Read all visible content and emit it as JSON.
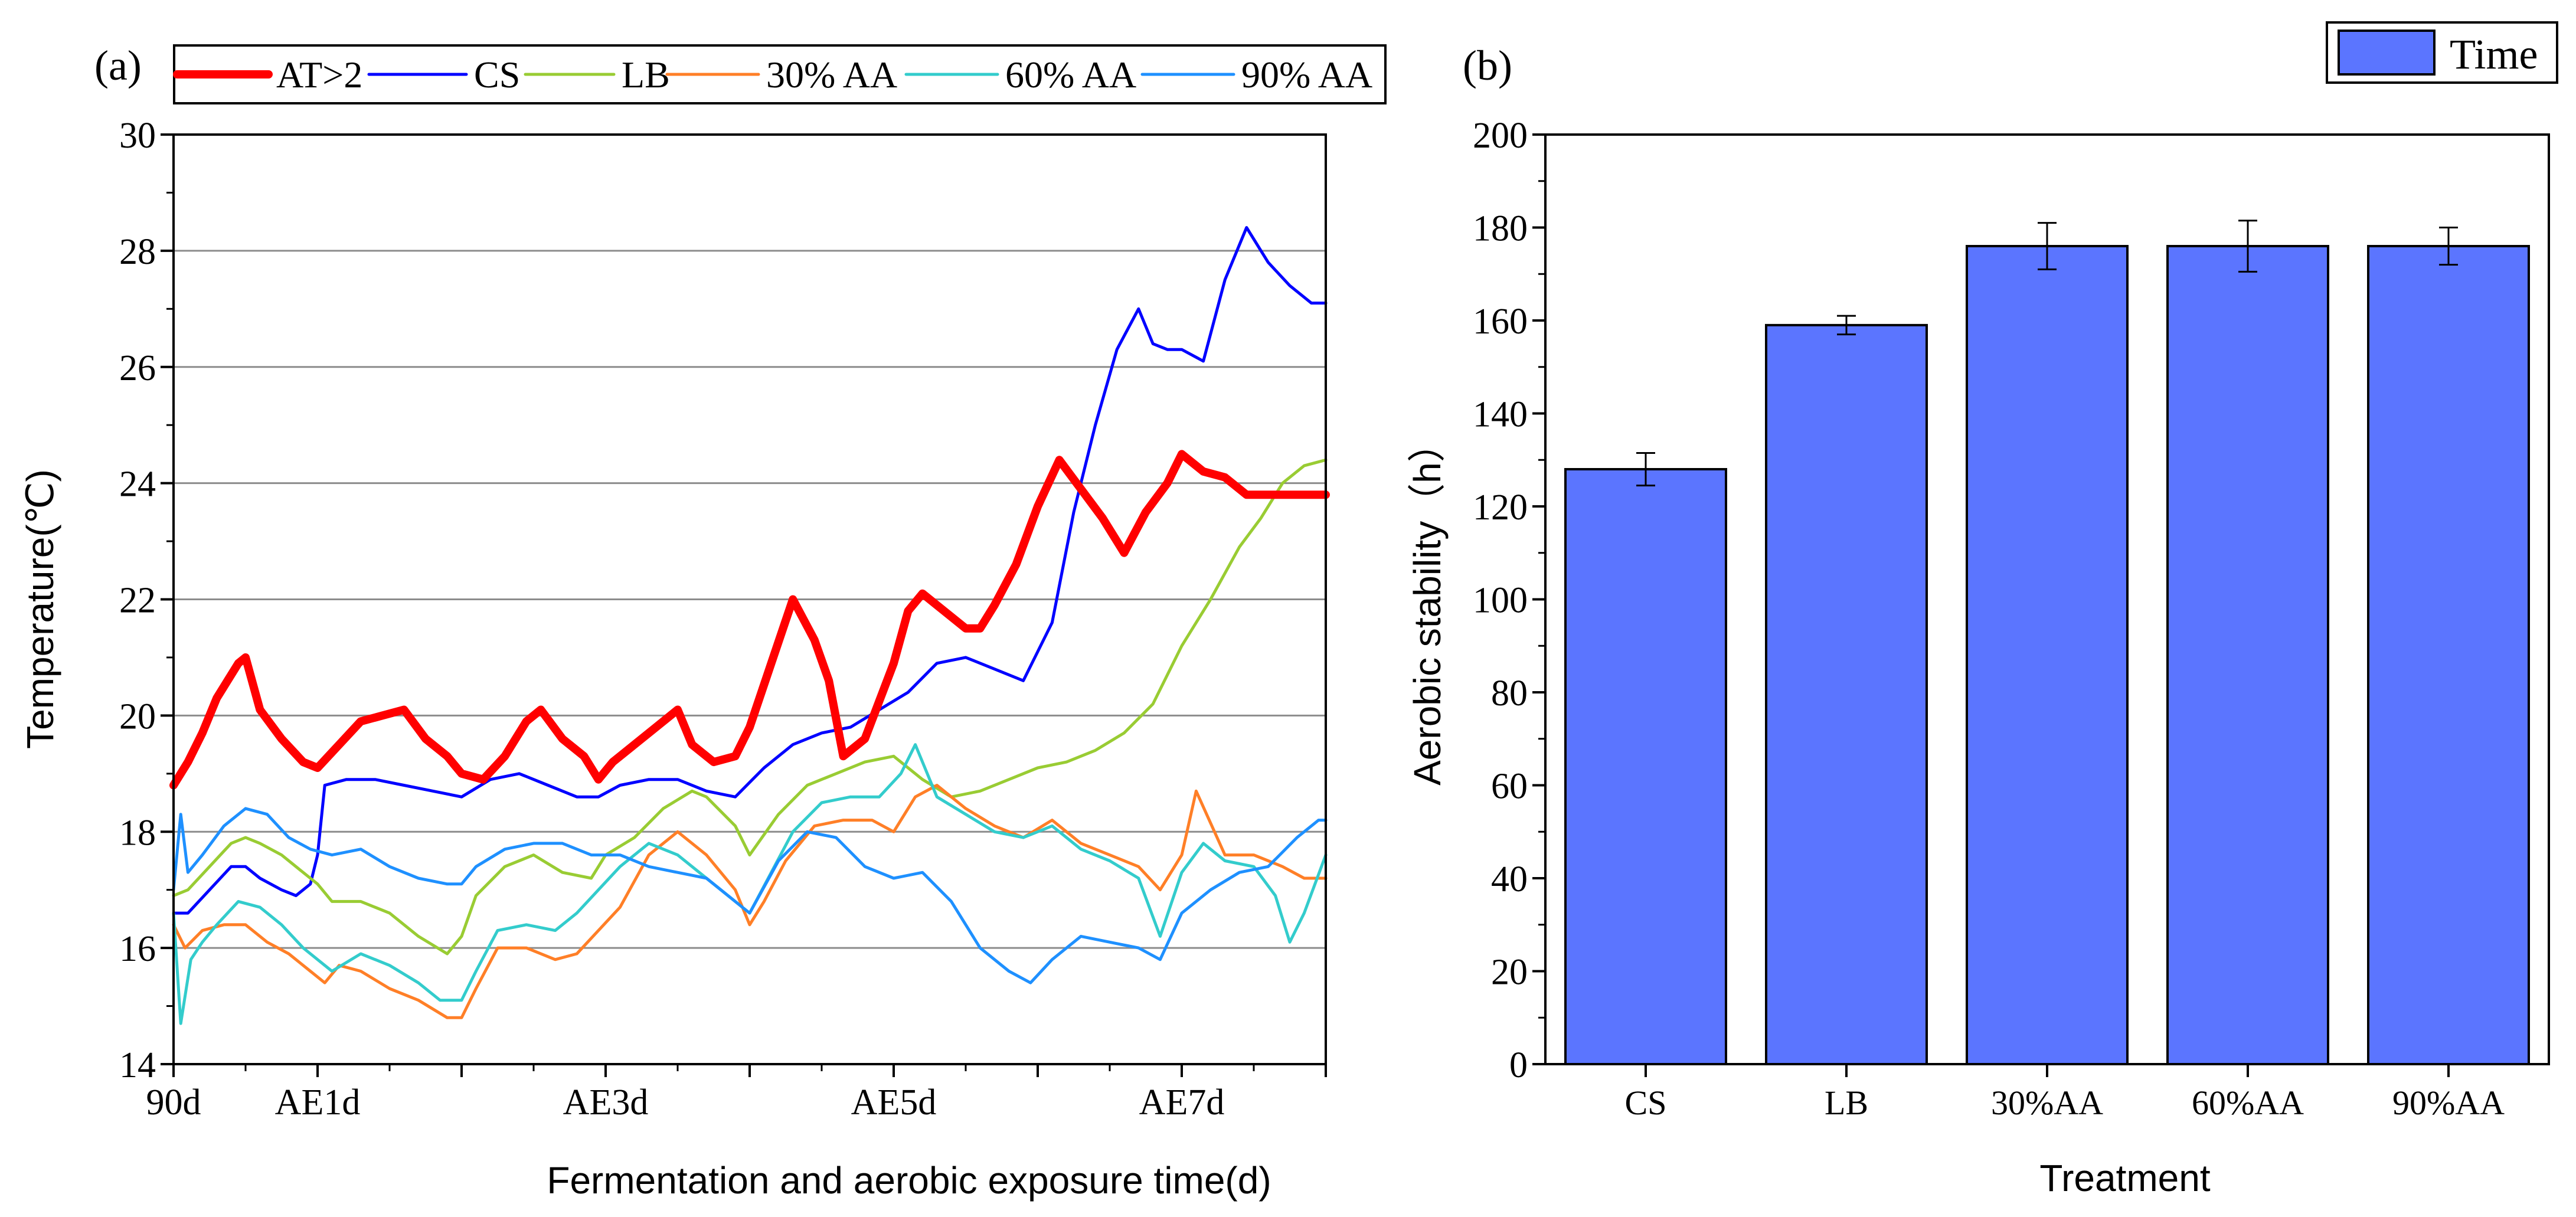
{
  "chart_data": [
    {
      "type": "line",
      "panel_label": "(a)",
      "title": "",
      "xlabel": "Fermentation and aerobic exposure time(d)",
      "ylabel": "Temperature(℃)",
      "ylim": [
        14,
        30
      ],
      "yticks": [
        "14",
        "16",
        "18",
        "20",
        "22",
        "24",
        "26",
        "28",
        "30"
      ],
      "xlim": [
        0,
        8
      ],
      "xtick_labels": [
        {
          "x": 0,
          "label": "90d"
        },
        {
          "x": 1,
          "label": "AE1d"
        },
        {
          "x": 3,
          "label": "AE3d"
        },
        {
          "x": 5,
          "label": "AE5d"
        },
        {
          "x": 7,
          "label": "AE7d"
        }
      ],
      "grid": "horizontal",
      "legend_position": "top",
      "series": [
        {
          "name": "AT>2",
          "color": "#ff0000",
          "x": [
            0,
            0.1,
            0.2,
            0.3,
            0.45,
            0.5,
            0.6,
            0.75,
            0.9,
            1.0,
            1.15,
            1.3,
            1.45,
            1.6,
            1.75,
            1.9,
            2.0,
            2.15,
            2.3,
            2.45,
            2.55,
            2.7,
            2.85,
            2.95,
            3.05,
            3.2,
            3.35,
            3.5,
            3.6,
            3.75,
            3.9,
            4.0,
            4.15,
            4.3,
            4.45,
            4.55,
            4.65,
            4.8,
            5.0,
            5.1,
            5.2,
            5.35,
            5.5,
            5.6,
            5.7,
            5.85,
            6.0,
            6.15,
            6.3,
            6.45,
            6.6,
            6.75,
            6.9,
            7.0,
            7.15,
            7.3,
            7.45,
            7.55,
            7.7,
            7.85,
            8.0
          ],
          "y": [
            18.8,
            19.2,
            19.7,
            20.3,
            20.9,
            21.0,
            20.1,
            19.6,
            19.2,
            19.1,
            19.5,
            19.9,
            20.0,
            20.1,
            19.6,
            19.3,
            19.0,
            18.9,
            19.3,
            19.9,
            20.1,
            19.6,
            19.3,
            18.9,
            19.2,
            19.5,
            19.8,
            20.1,
            19.5,
            19.2,
            19.3,
            19.8,
            20.9,
            22.0,
            21.3,
            20.6,
            19.3,
            19.6,
            20.9,
            21.8,
            22.1,
            21.8,
            21.5,
            21.5,
            21.9,
            22.6,
            23.6,
            24.4,
            23.9,
            23.4,
            22.8,
            23.5,
            24.0,
            24.5,
            24.2,
            24.1,
            23.8,
            23.8,
            23.8,
            23.8,
            23.8
          ]
        },
        {
          "name": "CS",
          "color": "#0000ff",
          "x": [
            0,
            0.1,
            0.25,
            0.4,
            0.5,
            0.6,
            0.75,
            0.85,
            0.95,
            1.0,
            1.05,
            1.2,
            1.4,
            1.6,
            1.8,
            2.0,
            2.2,
            2.4,
            2.6,
            2.8,
            2.95,
            3.1,
            3.3,
            3.5,
            3.7,
            3.9,
            4.1,
            4.3,
            4.5,
            4.7,
            4.9,
            5.1,
            5.3,
            5.5,
            5.7,
            5.9,
            6.1,
            6.25,
            6.4,
            6.55,
            6.7,
            6.8,
            6.9,
            7.0,
            7.15,
            7.3,
            7.45,
            7.6,
            7.75,
            7.9,
            8.0
          ],
          "y": [
            16.6,
            16.6,
            17.0,
            17.4,
            17.4,
            17.2,
            17.0,
            16.9,
            17.1,
            17.6,
            18.8,
            18.9,
            18.9,
            18.8,
            18.7,
            18.6,
            18.9,
            19.0,
            18.8,
            18.6,
            18.6,
            18.8,
            18.9,
            18.9,
            18.7,
            18.6,
            19.1,
            19.5,
            19.7,
            19.8,
            20.1,
            20.4,
            20.9,
            21.0,
            20.8,
            20.6,
            21.6,
            23.5,
            25.0,
            26.3,
            27.0,
            26.4,
            26.3,
            26.3,
            26.1,
            27.5,
            28.4,
            27.8,
            27.4,
            27.1,
            27.1
          ]
        },
        {
          "name": "LB",
          "color": "#99cc33",
          "x": [
            0,
            0.1,
            0.25,
            0.4,
            0.5,
            0.6,
            0.75,
            0.9,
            1.0,
            1.1,
            1.3,
            1.5,
            1.7,
            1.9,
            2.0,
            2.1,
            2.3,
            2.5,
            2.7,
            2.9,
            3.0,
            3.2,
            3.4,
            3.6,
            3.7,
            3.9,
            4.0,
            4.2,
            4.4,
            4.6,
            4.8,
            5.0,
            5.2,
            5.4,
            5.6,
            5.8,
            6.0,
            6.2,
            6.4,
            6.6,
            6.8,
            7.0,
            7.2,
            7.4,
            7.55,
            7.7,
            7.85,
            8.0
          ],
          "y": [
            16.9,
            17.0,
            17.4,
            17.8,
            17.9,
            17.8,
            17.6,
            17.3,
            17.1,
            16.8,
            16.8,
            16.6,
            16.2,
            15.9,
            16.2,
            16.9,
            17.4,
            17.6,
            17.3,
            17.2,
            17.6,
            17.9,
            18.4,
            18.7,
            18.6,
            18.1,
            17.6,
            18.3,
            18.8,
            19.0,
            19.2,
            19.3,
            18.9,
            18.6,
            18.7,
            18.9,
            19.1,
            19.2,
            19.4,
            19.7,
            20.2,
            21.2,
            22.0,
            22.9,
            23.4,
            24.0,
            24.3,
            24.4
          ]
        },
        {
          "name": "30% AA",
          "color": "#ff7f27",
          "x": [
            0,
            0.08,
            0.2,
            0.35,
            0.5,
            0.65,
            0.8,
            0.95,
            1.05,
            1.15,
            1.3,
            1.5,
            1.7,
            1.9,
            2.0,
            2.1,
            2.25,
            2.45,
            2.65,
            2.8,
            2.95,
            3.1,
            3.3,
            3.5,
            3.7,
            3.9,
            4.0,
            4.1,
            4.25,
            4.45,
            4.65,
            4.85,
            5.0,
            5.15,
            5.3,
            5.5,
            5.7,
            5.9,
            6.1,
            6.3,
            6.5,
            6.7,
            6.85,
            7.0,
            7.1,
            7.3,
            7.5,
            7.7,
            7.85,
            8.0
          ],
          "y": [
            16.4,
            16.0,
            16.3,
            16.4,
            16.4,
            16.1,
            15.9,
            15.6,
            15.4,
            15.7,
            15.6,
            15.3,
            15.1,
            14.8,
            14.8,
            15.3,
            16.0,
            16.0,
            15.8,
            15.9,
            16.3,
            16.7,
            17.6,
            18.0,
            17.6,
            17.0,
            16.4,
            16.8,
            17.5,
            18.1,
            18.2,
            18.2,
            18.0,
            18.6,
            18.8,
            18.4,
            18.1,
            17.9,
            18.2,
            17.8,
            17.6,
            17.4,
            17.0,
            17.6,
            18.7,
            17.6,
            17.6,
            17.4,
            17.2,
            17.2
          ]
        },
        {
          "name": "60% AA",
          "color": "#33cccc",
          "x": [
            0,
            0.05,
            0.12,
            0.2,
            0.3,
            0.45,
            0.6,
            0.75,
            0.9,
            1.0,
            1.1,
            1.3,
            1.5,
            1.7,
            1.85,
            2.0,
            2.1,
            2.25,
            2.45,
            2.65,
            2.8,
            2.95,
            3.1,
            3.3,
            3.5,
            3.7,
            3.9,
            4.0,
            4.15,
            4.3,
            4.5,
            4.7,
            4.9,
            5.05,
            5.15,
            5.3,
            5.5,
            5.7,
            5.9,
            6.1,
            6.3,
            6.5,
            6.7,
            6.85,
            7.0,
            7.15,
            7.3,
            7.5,
            7.65,
            7.75,
            7.85,
            8.0
          ],
          "y": [
            16.6,
            14.7,
            15.8,
            16.1,
            16.4,
            16.8,
            16.7,
            16.4,
            16.0,
            15.8,
            15.6,
            15.9,
            15.7,
            15.4,
            15.1,
            15.1,
            15.6,
            16.3,
            16.4,
            16.3,
            16.6,
            17.0,
            17.4,
            17.8,
            17.6,
            17.2,
            16.8,
            16.6,
            17.3,
            18.0,
            18.5,
            18.6,
            18.6,
            19.0,
            19.5,
            18.6,
            18.3,
            18.0,
            17.9,
            18.1,
            17.7,
            17.5,
            17.2,
            16.2,
            17.3,
            17.8,
            17.5,
            17.4,
            16.9,
            16.1,
            16.6,
            17.6
          ]
        },
        {
          "name": "90% AA",
          "color": "#1e90ff",
          "x": [
            0,
            0.05,
            0.1,
            0.2,
            0.35,
            0.5,
            0.65,
            0.8,
            0.95,
            1.1,
            1.3,
            1.5,
            1.7,
            1.9,
            2.0,
            2.1,
            2.3,
            2.5,
            2.7,
            2.9,
            3.1,
            3.3,
            3.5,
            3.7,
            3.9,
            4.0,
            4.2,
            4.4,
            4.6,
            4.8,
            5.0,
            5.2,
            5.4,
            5.6,
            5.8,
            5.95,
            6.1,
            6.3,
            6.5,
            6.7,
            6.85,
            7.0,
            7.2,
            7.4,
            7.6,
            7.8,
            7.95,
            8.0
          ],
          "y": [
            17.0,
            18.3,
            17.3,
            17.6,
            18.1,
            18.4,
            18.3,
            17.9,
            17.7,
            17.6,
            17.7,
            17.4,
            17.2,
            17.1,
            17.1,
            17.4,
            17.7,
            17.8,
            17.8,
            17.6,
            17.6,
            17.4,
            17.3,
            17.2,
            16.8,
            16.6,
            17.5,
            18.0,
            17.9,
            17.4,
            17.2,
            17.3,
            16.8,
            16.0,
            15.6,
            15.4,
            15.8,
            16.2,
            16.1,
            16.0,
            15.8,
            16.6,
            17.0,
            17.3,
            17.4,
            17.9,
            18.2,
            18.2
          ]
        }
      ]
    },
    {
      "type": "bar",
      "panel_label": "(b)",
      "title": "",
      "xlabel": "Treatment",
      "ylabel": "Aerobic stability（h）",
      "ylim": [
        0,
        200
      ],
      "yticks": [
        "0",
        "20",
        "40",
        "60",
        "80",
        "100",
        "120",
        "140",
        "160",
        "180",
        "200"
      ],
      "categories": [
        "CS",
        "LB",
        "30%AA",
        "60%AA",
        "90%AA"
      ],
      "series": [
        {
          "name": "Time",
          "color": "#5b75ff",
          "values": [
            128,
            159,
            176,
            176,
            176
          ],
          "errors": [
            3.5,
            2,
            5,
            5.5,
            4
          ]
        }
      ],
      "legend_position": "top-right",
      "grid": "none"
    }
  ]
}
